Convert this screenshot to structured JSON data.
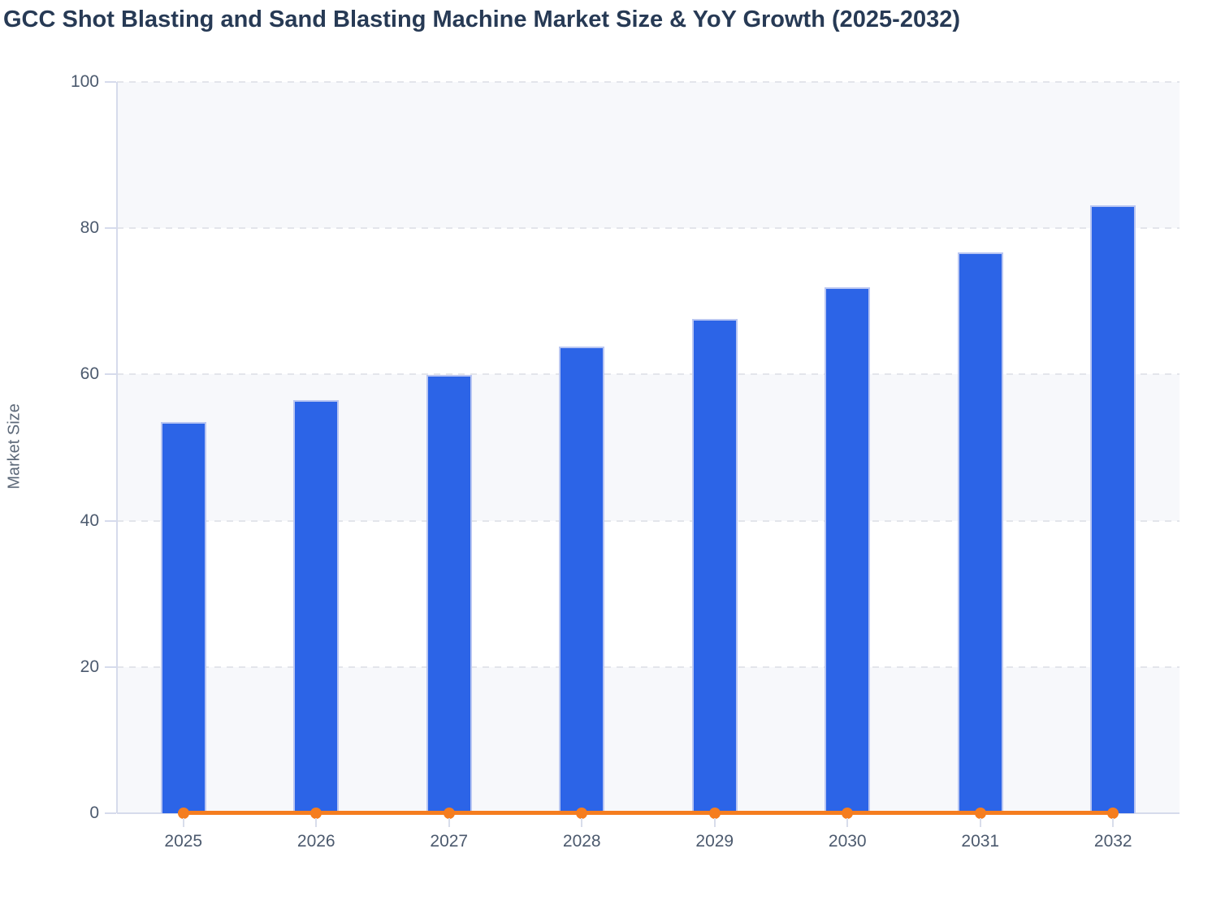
{
  "title": "GCC Shot Blasting and Sand Blasting Machine Market Size & YoY Growth (2025-2032)",
  "chart_data": {
    "type": "bar",
    "title": "GCC Shot Blasting and Sand Blasting Machine Market Size & YoY Growth (2025-2032)",
    "categories": [
      "2025",
      "2026",
      "2027",
      "2028",
      "2029",
      "2030",
      "2031",
      "2032"
    ],
    "series": [
      {
        "name": "Market Size",
        "type": "bar",
        "values": [
          53.5,
          56.5,
          59.9,
          63.8,
          67.6,
          71.9,
          76.7,
          83.1
        ]
      },
      {
        "name": "YoY Growth",
        "type": "line",
        "values": [
          0,
          0,
          0,
          0,
          0,
          0,
          0,
          0
        ]
      }
    ],
    "xlabel": "",
    "ylabel": "Market Size",
    "ylim": [
      0,
      100
    ],
    "yticks": [
      0,
      20,
      40,
      60,
      80,
      100
    ],
    "ytick_labels": [
      "0",
      "20",
      "40",
      "60",
      "80",
      "100"
    ],
    "grid": "horizontal dashed at each y tick, alternating shaded bands",
    "legend_position": "none"
  },
  "colors": {
    "bar_fill": "#2c64e7",
    "bar_border": "#b9c6f2",
    "line_color": "#f57d1f",
    "marker_color": "#f57d1f",
    "band_fill": "#f7f8fb",
    "gridline": "#e3e5eb",
    "axis_line": "#d6dbec",
    "x_tick_mark": "#d8ddeb",
    "title_text": "#273a55",
    "tick_text": "#4c5a6e",
    "axis_title_text": "#5c6878",
    "background": "#ffffff"
  }
}
